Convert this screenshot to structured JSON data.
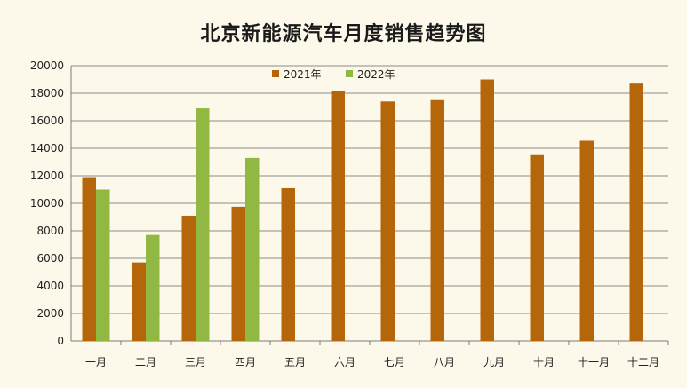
{
  "chart_data": {
    "type": "bar",
    "title": "北京新能源汽车月度销售趋势图",
    "xlabel": "",
    "ylabel": "",
    "categories": [
      "一月",
      "二月",
      "三月",
      "四月",
      "五月",
      "六月",
      "七月",
      "八月",
      "九月",
      "十月",
      "十一月",
      "十二月"
    ],
    "series": [
      {
        "name": "2021年",
        "color": "#b5650a",
        "values": [
          11900,
          5700,
          9100,
          9750,
          11100,
          18150,
          17400,
          17500,
          19000,
          13500,
          14550,
          18700
        ]
      },
      {
        "name": "2022年",
        "color": "#92b844",
        "values": [
          11000,
          7700,
          16900,
          13300,
          null,
          null,
          null,
          null,
          null,
          null,
          null,
          null
        ]
      }
    ],
    "ylim": [
      0,
      20000
    ],
    "yticks": [
      0,
      2000,
      4000,
      6000,
      8000,
      10000,
      12000,
      14000,
      16000,
      18000,
      20000
    ],
    "grid": true,
    "legend": "top-center"
  }
}
